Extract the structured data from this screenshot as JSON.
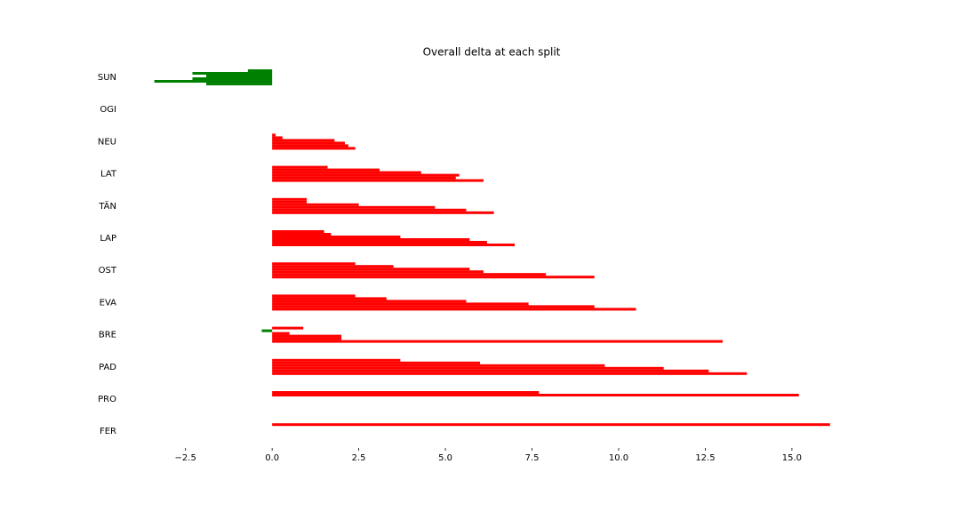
{
  "chart_data": {
    "type": "bar",
    "orientation": "horizontal",
    "title": "Overall delta at each split",
    "categories": [
      "SUN",
      "OGI",
      "NEU",
      "LAT",
      "TÄN",
      "LAP",
      "OST",
      "EVA",
      "BRE",
      "PAD",
      "PRO",
      "FER"
    ],
    "series": [
      {
        "values": [
          -0.7,
          0,
          0.1,
          1.6,
          1.0,
          1.5,
          2.4,
          2.4,
          0.9,
          3.7,
          7.7,
          16.1
        ]
      },
      {
        "values": [
          -2.3,
          0,
          0.3,
          3.1,
          1.0,
          1.7,
          3.5,
          3.3,
          -0.3,
          6.0,
          15.2,
          null
        ]
      },
      {
        "values": [
          -1.9,
          0,
          1.8,
          4.3,
          2.5,
          3.7,
          5.7,
          5.6,
          0.5,
          9.6,
          null,
          null
        ]
      },
      {
        "values": [
          -2.3,
          0,
          2.1,
          5.4,
          4.7,
          5.7,
          6.1,
          7.4,
          2.0,
          11.3,
          null,
          null
        ]
      },
      {
        "values": [
          -3.4,
          0,
          2.2,
          5.3,
          5.6,
          6.2,
          7.9,
          9.3,
          2.0,
          12.6,
          null,
          null
        ]
      },
      {
        "values": [
          -1.9,
          0,
          2.4,
          6.1,
          6.4,
          7.0,
          9.3,
          10.5,
          13.0,
          13.7,
          null,
          null
        ]
      }
    ],
    "positive_color": "#ff0000",
    "negative_color": "#008000",
    "xlim": [
      -4.39,
      17.08
    ],
    "xticks": [
      {
        "value": -2.5,
        "label": "−2.5"
      },
      {
        "value": 0,
        "label": "0.0"
      },
      {
        "value": 2.5,
        "label": "2.5"
      },
      {
        "value": 5,
        "label": "5.0"
      },
      {
        "value": 7.5,
        "label": "7.5"
      },
      {
        "value": 10,
        "label": "10.0"
      },
      {
        "value": 12.5,
        "label": "12.5"
      },
      {
        "value": 15,
        "label": "15.0"
      }
    ],
    "grid": false
  }
}
